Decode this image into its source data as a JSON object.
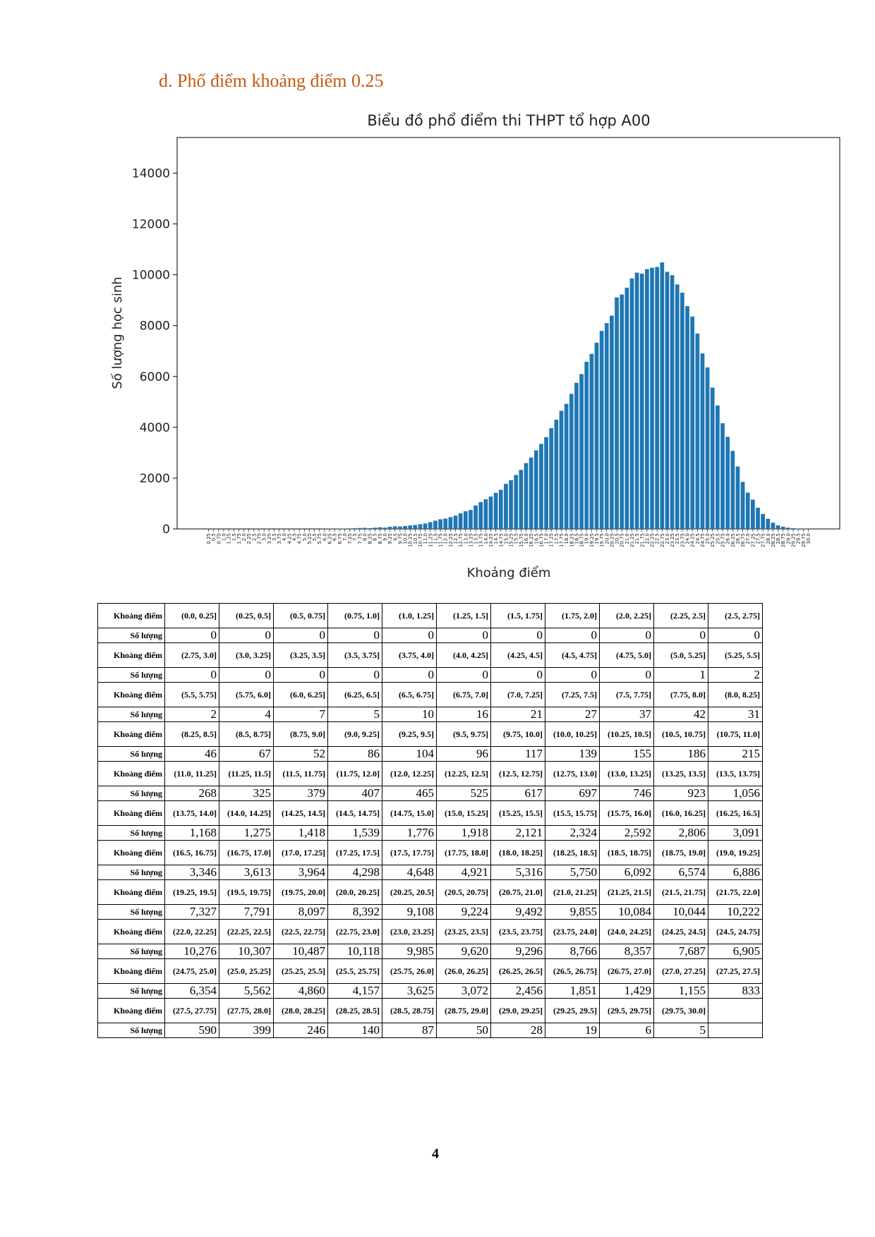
{
  "heading": "d.  Phổ điểm khoảng điểm 0.25",
  "page_number": "4",
  "chart_data": {
    "type": "bar",
    "title": "Biểu đồ phổ điểm thi THPT tổ hợp A00",
    "xlabel": "Khoảng điểm",
    "ylabel": "Số lượng học sinh",
    "color": "#1f77b4",
    "ylim": [
      0,
      15400
    ],
    "yticks": [
      0,
      2000,
      4000,
      6000,
      8000,
      10000,
      12000,
      14000
    ],
    "grid": false,
    "categories": [
      "0.25",
      "0.5",
      "0.75",
      "1.0",
      "1.25",
      "1.5",
      "1.75",
      "2.0",
      "2.25",
      "2.5",
      "2.75",
      "3.0",
      "3.25",
      "3.5",
      "3.75",
      "4.0",
      "4.25",
      "4.5",
      "4.75",
      "5.0",
      "5.25",
      "5.5",
      "5.75",
      "6.0",
      "6.25",
      "6.5",
      "6.75",
      "7.0",
      "7.25",
      "7.5",
      "7.75",
      "8.0",
      "8.25",
      "8.5",
      "8.75",
      "9.0",
      "9.25",
      "9.5",
      "9.75",
      "10.0",
      "10.25",
      "10.5",
      "10.75",
      "11.0",
      "11.25",
      "11.5",
      "11.75",
      "12.0",
      "12.25",
      "12.5",
      "12.75",
      "13.0",
      "13.25",
      "13.5",
      "13.75",
      "14.0",
      "14.25",
      "14.5",
      "14.75",
      "15.0",
      "15.25",
      "15.5",
      "15.75",
      "16.0",
      "16.25",
      "16.5",
      "16.75",
      "17.0",
      "17.25",
      "17.5",
      "17.75",
      "18.0",
      "18.25",
      "18.5",
      "18.75",
      "19.0",
      "19.25",
      "19.5",
      "19.75",
      "20.0",
      "20.25",
      "20.5",
      "20.75",
      "21.0",
      "21.25",
      "21.5",
      "21.75",
      "22.0",
      "22.25",
      "22.5",
      "22.75",
      "23.0",
      "23.25",
      "23.5",
      "23.75",
      "24.0",
      "24.25",
      "24.5",
      "24.75",
      "25.0",
      "25.25",
      "25.5",
      "25.75",
      "26.0",
      "26.25",
      "26.5",
      "26.75",
      "27.0",
      "27.25",
      "27.5",
      "27.75",
      "28.0",
      "28.25",
      "28.5",
      "28.75",
      "29.0",
      "29.25",
      "29.5",
      "29.75",
      "30.0"
    ],
    "values": [
      0,
      0,
      0,
      0,
      0,
      0,
      0,
      0,
      0,
      0,
      0,
      0,
      0,
      0,
      0,
      0,
      0,
      0,
      0,
      0,
      1,
      2,
      2,
      4,
      7,
      5,
      10,
      16,
      21,
      27,
      37,
      42,
      31,
      46,
      67,
      52,
      86,
      104,
      96,
      117,
      139,
      155,
      186,
      215,
      268,
      325,
      379,
      407,
      465,
      525,
      617,
      697,
      746,
      923,
      1056,
      1168,
      1275,
      1418,
      1539,
      1776,
      1918,
      2121,
      2324,
      2592,
      2806,
      3091,
      3346,
      3613,
      3964,
      4298,
      4648,
      4921,
      5316,
      5750,
      6092,
      6574,
      6886,
      7327,
      7791,
      8097,
      8392,
      9108,
      9224,
      9492,
      9855,
      10084,
      10044,
      10222,
      10276,
      10307,
      10487,
      10118,
      9985,
      9620,
      9296,
      8766,
      8357,
      7687,
      6905,
      6354,
      5562,
      4860,
      4157,
      3625,
      3072,
      2456,
      1851,
      1429,
      1155,
      833,
      590,
      399,
      246,
      140,
      87,
      50,
      28,
      19,
      6,
      5
    ],
    "value_labels": [
      "0",
      "0",
      "0",
      "0",
      "0",
      "0",
      "0",
      "0",
      "0",
      "0",
      "0",
      "0",
      "0",
      "0",
      "0",
      "0",
      "0",
      "0",
      "0",
      "0",
      "1",
      "2",
      "2",
      "4",
      "7",
      "5",
      "10",
      "16",
      "21",
      "27",
      "37",
      "42",
      "31",
      "46",
      "67",
      "52",
      "86",
      "104",
      "96",
      "117",
      "139",
      "155",
      "186",
      "215",
      "268",
      "325",
      "379",
      "407",
      "465",
      "525",
      "617",
      "697",
      "746",
      "923",
      "1,056",
      "1,168",
      "1,275",
      "1,418",
      "1,539",
      "1,776",
      "1,918",
      "2,121",
      "2,324",
      "2,592",
      "2,806",
      "3,091",
      "3,346",
      "3,613",
      "3,964",
      "4,298",
      "4,648",
      "4,921",
      "5,316",
      "5,750",
      "6,092",
      "6,574",
      "6,886",
      "7,327",
      "7,791",
      "8,097",
      "8,392",
      "9,108",
      "9,224",
      "9,492",
      "9,855",
      "10,084",
      "10,044",
      "10,222",
      "10,276",
      "10,307",
      "10,487",
      "10,118",
      "9,985",
      "9,620",
      "9,296",
      "8,766",
      "8,357",
      "7,687",
      "6,905",
      "6,354",
      "5,562",
      "4,860",
      "4,157",
      "3,625",
      "3,072",
      "2,456",
      "1,851",
      "1,429",
      "1,155",
      "833",
      "590",
      "399",
      "246",
      "140",
      "87",
      "50",
      "28",
      "19",
      "6",
      "5"
    ]
  },
  "table": {
    "headers": [
      "Khoảng điểm",
      "Số lượng"
    ],
    "intervals": [
      "(0.0, 0.25]",
      "(0.25, 0.5]",
      "(0.5, 0.75]",
      "(0.75, 1.0]",
      "(1.0, 1.25]",
      "(1.25, 1.5]",
      "(1.5, 1.75]",
      "(1.75, 2.0]",
      "(2.0, 2.25]",
      "(2.25, 2.5]",
      "(2.5, 2.75]",
      "(2.75, 3.0]",
      "(3.0, 3.25]",
      "(3.25, 3.5]",
      "(3.5, 3.75]",
      "(3.75, 4.0]",
      "(4.0, 4.25]",
      "(4.25, 4.5]",
      "(4.5, 4.75]",
      "(4.75, 5.0]",
      "(5.0, 5.25]",
      "(5.25, 5.5]",
      "(5.5, 5.75]",
      "(5.75, 6.0]",
      "(6.0, 6.25]",
      "(6.25, 6.5]",
      "(6.5, 6.75]",
      "(6.75, 7.0]",
      "(7.0, 7.25]",
      "(7.25, 7.5]",
      "(7.5, 7.75]",
      "(7.75, 8.0]",
      "(8.0, 8.25]",
      "(8.25, 8.5]",
      "(8.5, 8.75]",
      "(8.75, 9.0]",
      "(9.0, 9.25]",
      "(9.25, 9.5]",
      "(9.5, 9.75]",
      "(9.75, 10.0]",
      "(10.0, 10.25]",
      "(10.25, 10.5]",
      "(10.5, 10.75]",
      "(10.75, 11.0]",
      "(11.0, 11.25]",
      "(11.25, 11.5]",
      "(11.5, 11.75]",
      "(11.75, 12.0]",
      "(12.0, 12.25]",
      "(12.25, 12.5]",
      "(12.5, 12.75]",
      "(12.75, 13.0]",
      "(13.0, 13.25]",
      "(13.25, 13.5]",
      "(13.5, 13.75]",
      "(13.75, 14.0]",
      "(14.0, 14.25]",
      "(14.25, 14.5]",
      "(14.5, 14.75]",
      "(14.75, 15.0]",
      "(15.0, 15.25]",
      "(15.25, 15.5]",
      "(15.5, 15.75]",
      "(15.75, 16.0]",
      "(16.0, 16.25]",
      "(16.25, 16.5]",
      "(16.5, 16.75]",
      "(16.75, 17.0]",
      "(17.0, 17.25]",
      "(17.25, 17.5]",
      "(17.5, 17.75]",
      "(17.75, 18.0]",
      "(18.0, 18.25]",
      "(18.25, 18.5]",
      "(18.5, 18.75]",
      "(18.75, 19.0]",
      "(19.0, 19.25]",
      "(19.25, 19.5]",
      "(19.5, 19.75]",
      "(19.75, 20.0]",
      "(20.0, 20.25]",
      "(20.25, 20.5]",
      "(20.5, 20.75]",
      "(20.75, 21.0]",
      "(21.0, 21.25]",
      "(21.25, 21.5]",
      "(21.5, 21.75]",
      "(21.75, 22.0]",
      "(22.0, 22.25]",
      "(22.25, 22.5]",
      "(22.5, 22.75]",
      "(22.75, 23.0]",
      "(23.0, 23.25]",
      "(23.25, 23.5]",
      "(23.5, 23.75]",
      "(23.75, 24.0]",
      "(24.0, 24.25]",
      "(24.25, 24.5]",
      "(24.5, 24.75]",
      "(24.75, 25.0]",
      "(25.0, 25.25]",
      "(25.25, 25.5]",
      "(25.5, 25.75]",
      "(25.75, 26.0]",
      "(26.0, 26.25]",
      "(26.25, 26.5]",
      "(26.5, 26.75]",
      "(26.75, 27.0]",
      "(27.0, 27.25]",
      "(27.25, 27.5]",
      "(27.5, 27.75]",
      "(27.75, 28.0]",
      "(28.0, 28.25]",
      "(28.25, 28.5]",
      "(28.5, 28.75]",
      "(28.75, 29.0]",
      "(29.0, 29.25]",
      "(29.25, 29.5]",
      "(29.5, 29.75]",
      "(29.75, 30.0]"
    ]
  }
}
